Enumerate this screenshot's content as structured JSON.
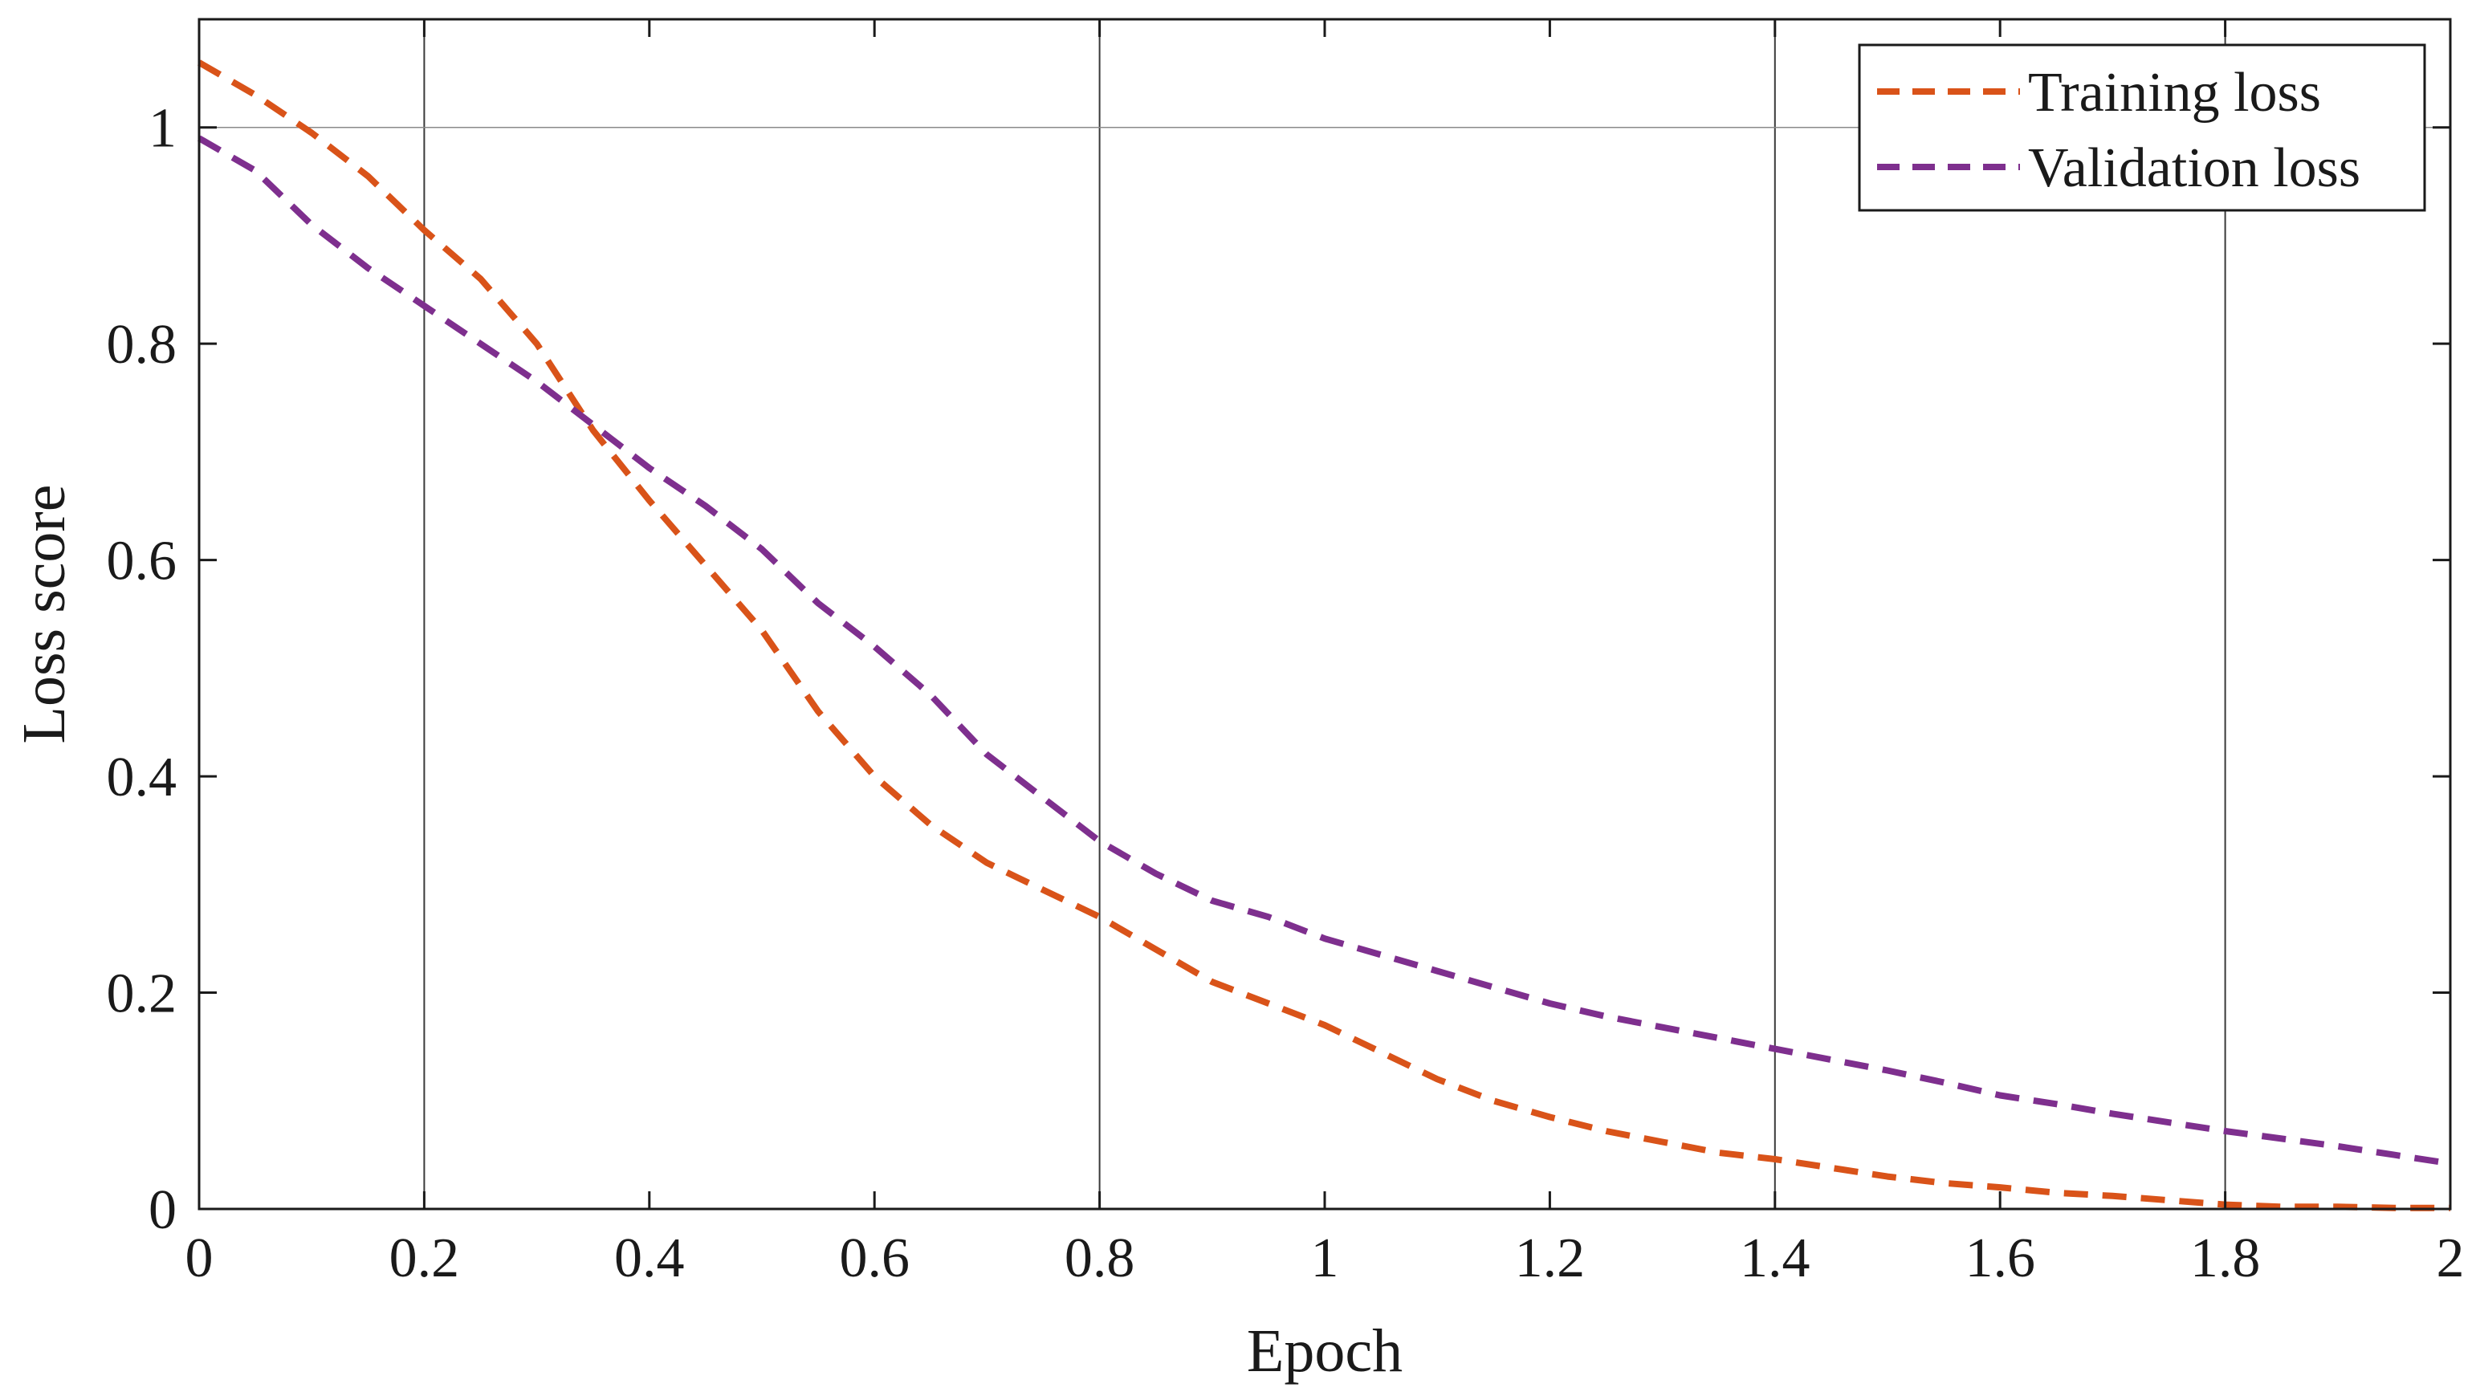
{
  "chart_data": {
    "type": "line",
    "title": "",
    "xlabel": "Epoch",
    "ylabel": "Loss score",
    "xlim": [
      0,
      2
    ],
    "ylim": [
      0,
      1.1
    ],
    "xticks": [
      0,
      0.2,
      0.4,
      0.6,
      0.8,
      1,
      1.2,
      1.4,
      1.6,
      1.8,
      2
    ],
    "xtick_labels": [
      "0",
      "0.2",
      "0.4",
      "0.6",
      "0.8",
      "1",
      "1.2",
      "1.4",
      "1.6",
      "1.8",
      "2"
    ],
    "yticks": [
      0,
      0.2,
      0.4,
      0.6,
      0.8,
      1
    ],
    "ytick_labels": [
      "0",
      "0.2",
      "0.4",
      "0.6",
      "0.8",
      "1"
    ],
    "grid_vertical": [
      0.2,
      0.8,
      1.4,
      1.8
    ],
    "grid_horizontal": [
      1
    ],
    "legend_position": "top-right",
    "series": [
      {
        "name": "Training loss",
        "color": "#D95319",
        "style": "dashed",
        "x": [
          0,
          0.05,
          0.1,
          0.15,
          0.2,
          0.25,
          0.3,
          0.35,
          0.4,
          0.45,
          0.5,
          0.55,
          0.6,
          0.65,
          0.7,
          0.75,
          0.8,
          0.85,
          0.9,
          0.95,
          1.0,
          1.05,
          1.1,
          1.15,
          1.2,
          1.25,
          1.3,
          1.35,
          1.4,
          1.45,
          1.5,
          1.55,
          1.6,
          1.65,
          1.7,
          1.75,
          1.8,
          1.85,
          1.9,
          1.95,
          2.0
        ],
        "y": [
          1.06,
          1.03,
          0.995,
          0.955,
          0.905,
          0.86,
          0.8,
          0.72,
          0.655,
          0.595,
          0.535,
          0.46,
          0.4,
          0.355,
          0.32,
          0.295,
          0.27,
          0.24,
          0.21,
          0.19,
          0.17,
          0.145,
          0.12,
          0.1,
          0.085,
          0.072,
          0.062,
          0.052,
          0.046,
          0.038,
          0.03,
          0.024,
          0.02,
          0.015,
          0.012,
          0.008,
          0.004,
          0.002,
          0.002,
          0.001,
          0.001
        ]
      },
      {
        "name": "Validation loss",
        "color": "#7E2F8E",
        "style": "dashed",
        "x": [
          0,
          0.05,
          0.1,
          0.15,
          0.2,
          0.25,
          0.3,
          0.35,
          0.4,
          0.45,
          0.5,
          0.55,
          0.6,
          0.65,
          0.7,
          0.75,
          0.8,
          0.85,
          0.9,
          0.95,
          1.0,
          1.05,
          1.1,
          1.15,
          1.2,
          1.25,
          1.3,
          1.35,
          1.4,
          1.45,
          1.5,
          1.55,
          1.6,
          1.65,
          1.7,
          1.75,
          1.8,
          1.85,
          1.9,
          1.95,
          2.0
        ],
        "y": [
          0.99,
          0.96,
          0.91,
          0.87,
          0.835,
          0.8,
          0.765,
          0.725,
          0.685,
          0.65,
          0.61,
          0.56,
          0.52,
          0.475,
          0.42,
          0.38,
          0.34,
          0.31,
          0.285,
          0.27,
          0.25,
          0.235,
          0.22,
          0.205,
          0.19,
          0.178,
          0.168,
          0.158,
          0.148,
          0.138,
          0.128,
          0.117,
          0.105,
          0.097,
          0.088,
          0.08,
          0.072,
          0.065,
          0.058,
          0.05,
          0.042
        ]
      }
    ]
  }
}
